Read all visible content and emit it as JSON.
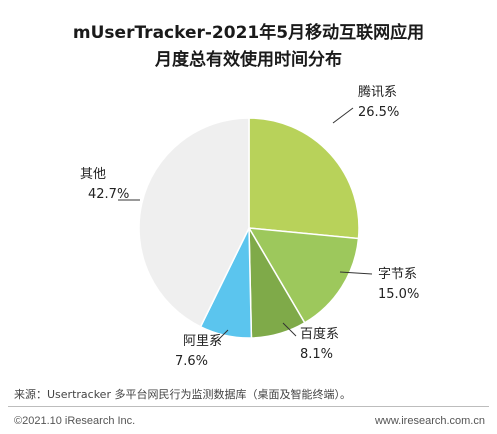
{
  "chart_data": {
    "type": "pie",
    "title": "mUserTracker-2021年5月移动互联网应用",
    "subtitle": "月度总有效使用时间分布",
    "slices": [
      {
        "label": "腾讯系",
        "value": 26.5,
        "value_label": "26.5%",
        "color": "#b8d25a"
      },
      {
        "label": "字节系",
        "value": 15.0,
        "value_label": "15.0%",
        "color": "#9dc85c"
      },
      {
        "label": "百度系",
        "value": 8.1,
        "value_label": "8.1%",
        "color": "#7faa49"
      },
      {
        "label": "阿里系",
        "value": 7.6,
        "value_label": "7.6%",
        "color": "#5bc5ee"
      },
      {
        "label": "其他",
        "value": 42.7,
        "value_label": "42.7%",
        "color": "#efefef"
      }
    ],
    "start_angle": "12 o'clock, clockwise"
  },
  "footer": {
    "source": "来源：Usertracker 多平台网民行为监测数据库（桌面及智能终端）。",
    "copyright": "©2021.10 iResearch Inc.",
    "site": "www.iresearch.com.cn"
  }
}
